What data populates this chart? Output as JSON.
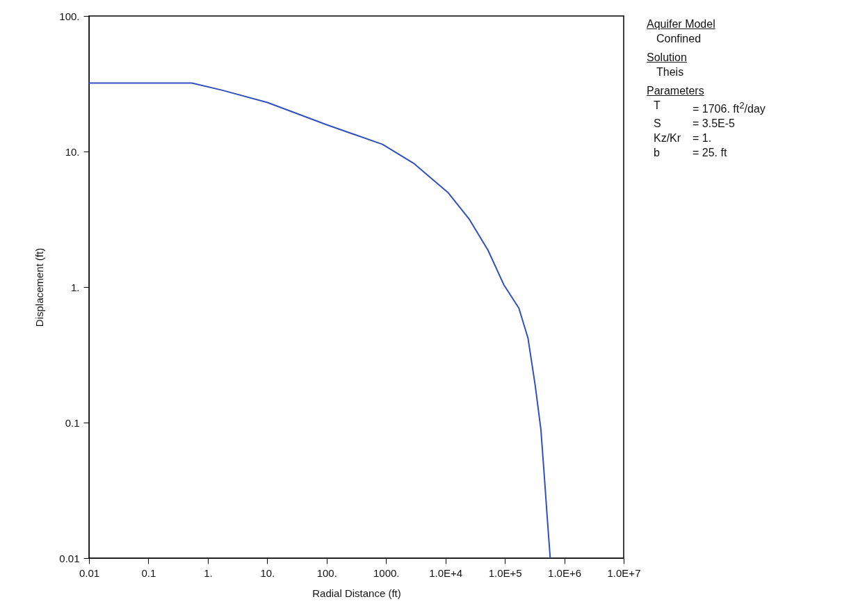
{
  "chart_data": {
    "type": "line",
    "xlabel": "Radial Distance (ft)",
    "ylabel": "Displacement (ft)",
    "log": "xy",
    "grid": false,
    "legend": false,
    "marker": "none",
    "line_style": "solid",
    "xlim": [
      0.01,
      10000000
    ],
    "ylim": [
      0.01,
      100
    ],
    "xticks": [
      0.01,
      0.1,
      {
        "value": 1,
        "label": "1."
      },
      {
        "value": 10,
        "label": "10."
      },
      {
        "value": 100,
        "label": "100."
      },
      {
        "value": 1000,
        "label": "1000."
      },
      {
        "value": 10000,
        "label": "1.0E+4"
      },
      {
        "value": 100000,
        "label": "1.0E+5"
      },
      {
        "value": 1000000,
        "label": "1.0E+6"
      },
      {
        "value": 10000000,
        "label": "1.0E+7"
      }
    ],
    "yticks": [
      0.01,
      0.1,
      {
        "value": 1,
        "label": "1."
      },
      {
        "value": 10,
        "label": "10."
      },
      {
        "value": 100,
        "label": "100."
      }
    ],
    "series": [
      {
        "color": "#3050c0",
        "x": [
          0.01,
          0.54,
          1.76,
          10.1,
          102,
          870,
          2900,
          11200,
          25000,
          52000,
          96000,
          172000,
          245000,
          323000,
          404000,
          460000,
          522000,
          580000
        ],
        "values": [
          32,
          32,
          28.3,
          23,
          15.7,
          11.3,
          8.2,
          4.95,
          3.18,
          1.87,
          1.04,
          0.7,
          0.42,
          0.19,
          0.089,
          0.041,
          0.0187,
          0.01
        ]
      }
    ],
    "annotations": [
      "Aquifer Model",
      "Confined",
      "Solution",
      "Theis",
      "Parameters",
      "T = 1706. ft$^{2}$/day",
      "S = 3.5E-5",
      "Kz/Kr = 1.",
      "b = 25. ft"
    ]
  }
}
